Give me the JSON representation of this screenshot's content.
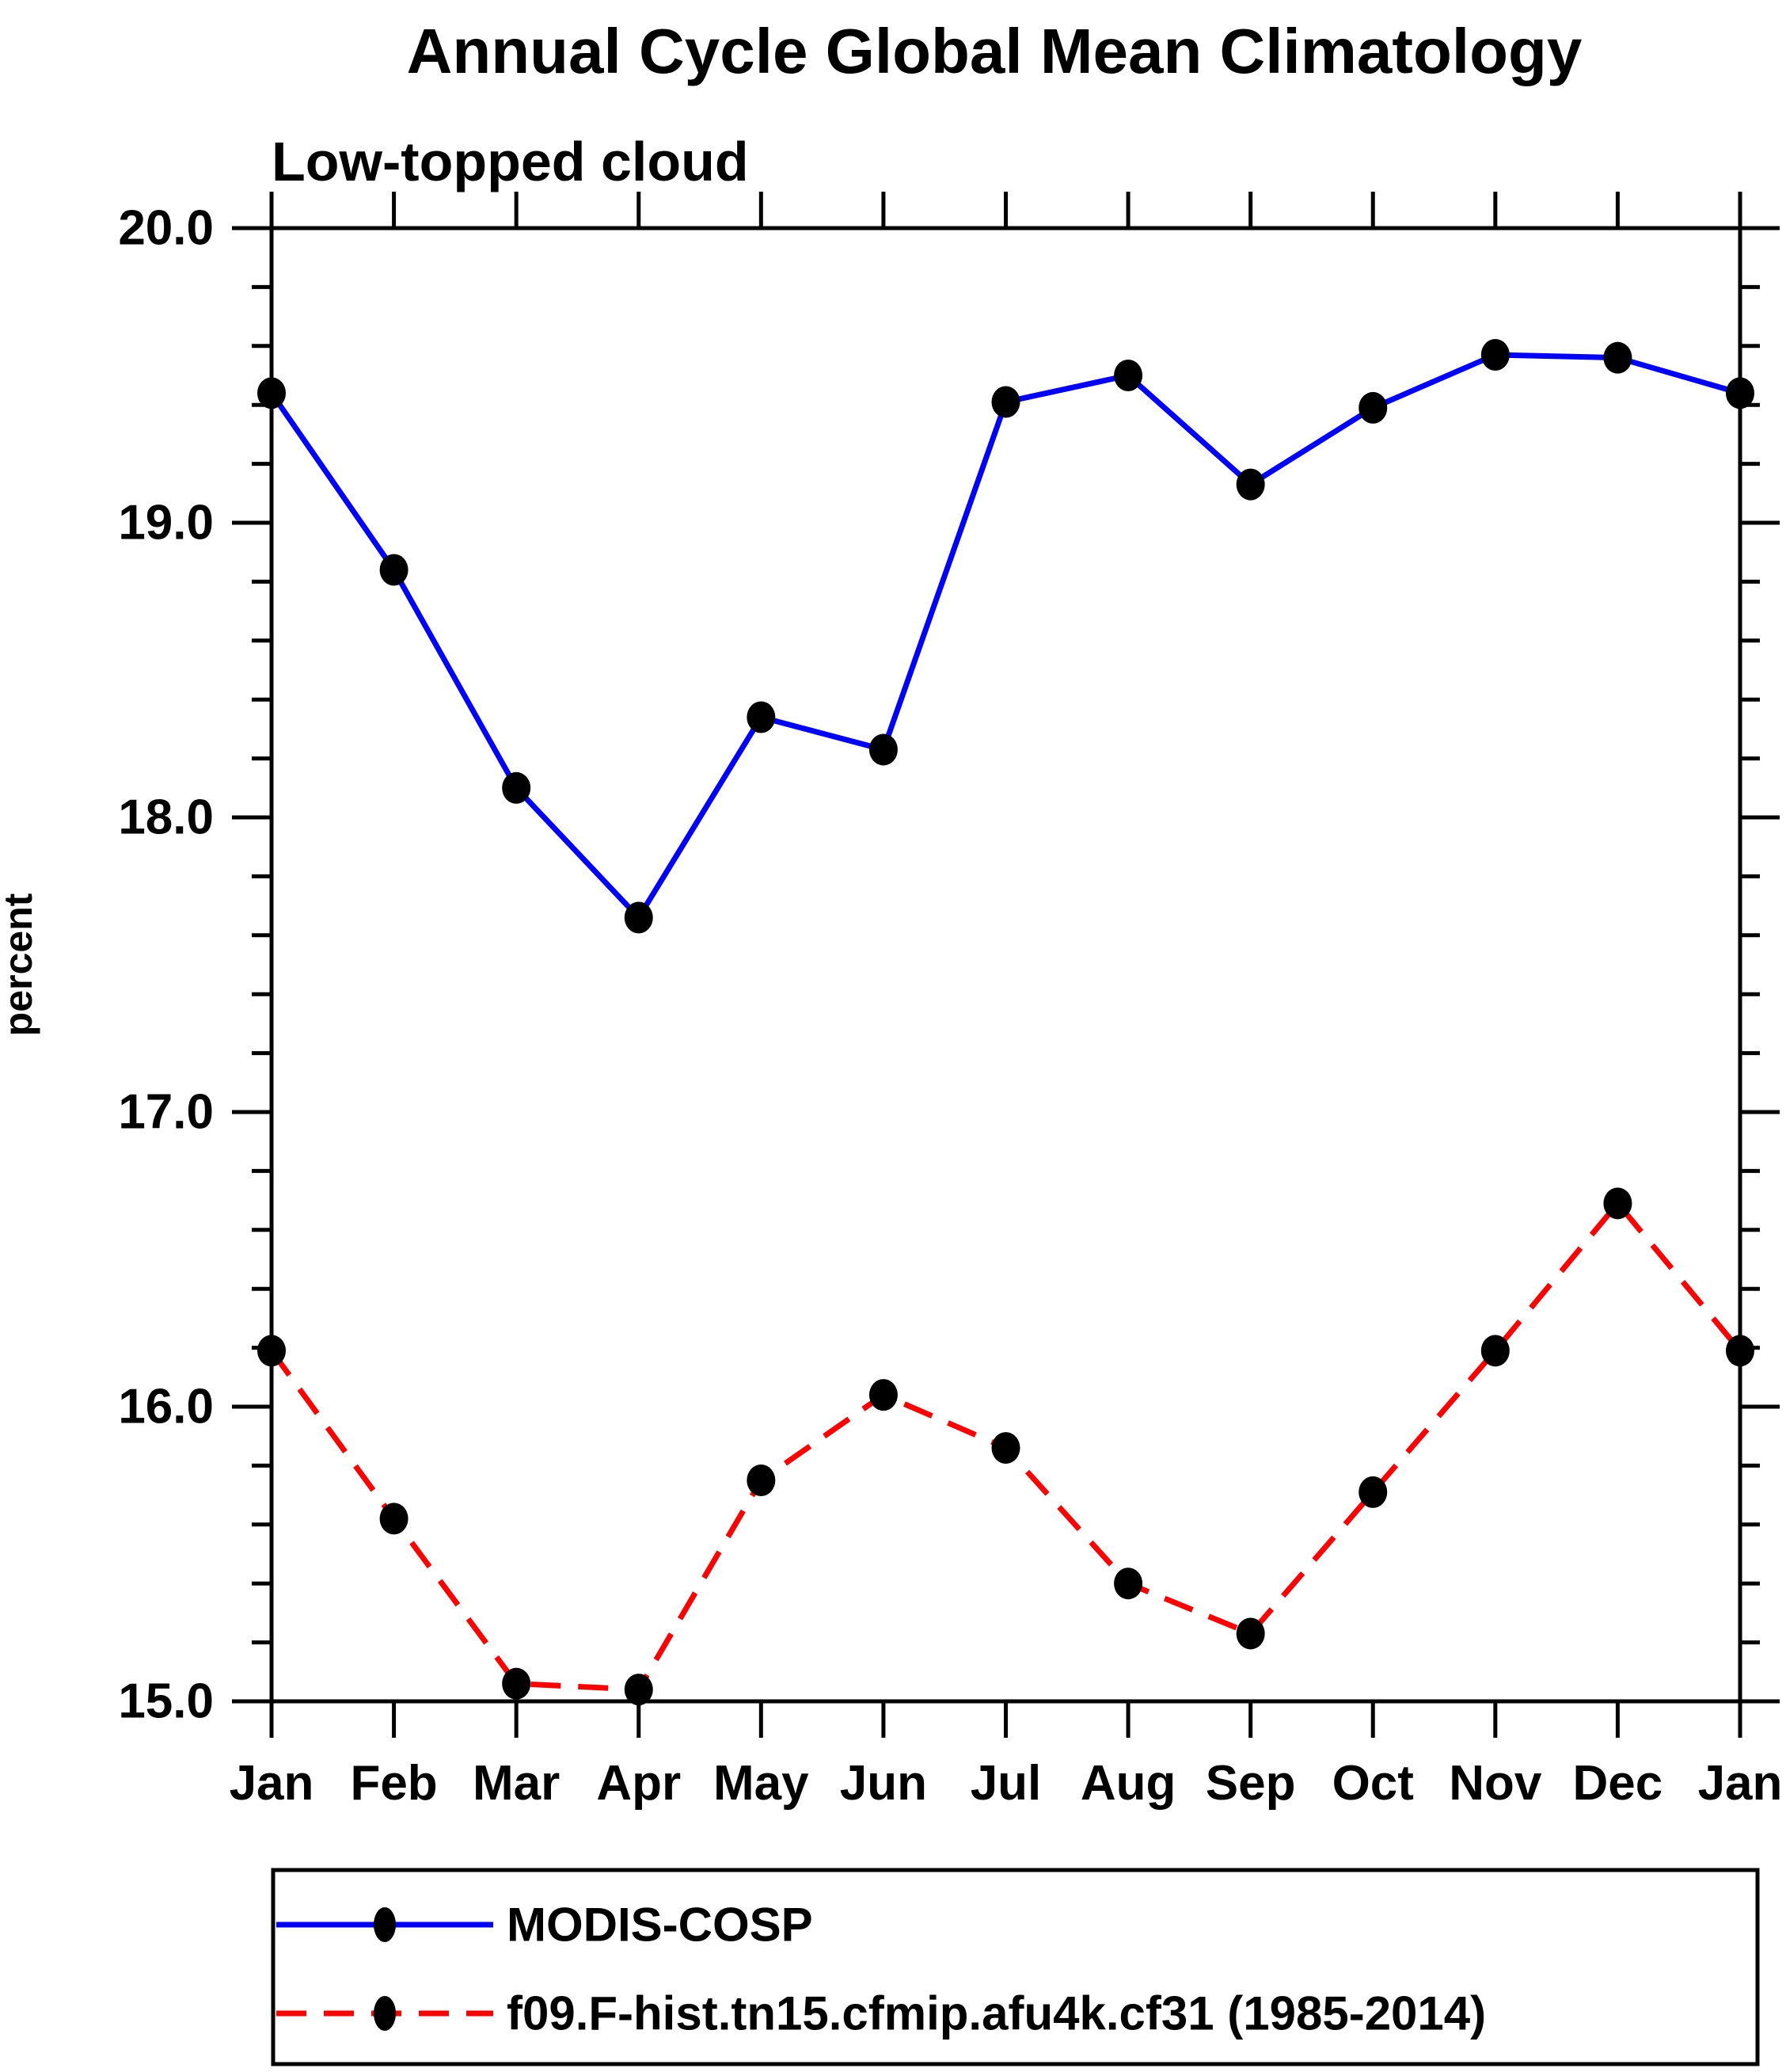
{
  "title": "Annual Cycle Global Mean Climatology",
  "subtitle": "Low-topped cloud",
  "colors": {
    "background": "#ffffff",
    "axis": "#000000",
    "obs_line": "#0000ff",
    "model_line": "#ff0000",
    "marker": "#000000",
    "text": "#000000"
  },
  "chart_data": {
    "type": "line",
    "title": "Annual Cycle Global Mean Climatology",
    "subtitle": "Low-topped cloud",
    "xlabel": "",
    "ylabel": "percent",
    "x_categories": [
      "Jan",
      "Feb",
      "Mar",
      "Apr",
      "May",
      "Jun",
      "Jul",
      "Aug",
      "Sep",
      "Oct",
      "Nov",
      "Dec",
      "Jan"
    ],
    "ylim": [
      15.0,
      20.0
    ],
    "ytick_major_labels": [
      "15.0",
      "16.0",
      "17.0",
      "18.0",
      "19.0",
      "20.0"
    ],
    "ytick_major_values": [
      15.0,
      16.0,
      17.0,
      18.0,
      19.0,
      20.0
    ],
    "ytick_minor_step": 0.2,
    "grid": false,
    "legend_position": "bottom",
    "series": [
      {
        "name": "MODIS-COSP",
        "color": "#0000ff",
        "line_style": "solid",
        "marker": "filled-circle",
        "marker_color": "#000000",
        "values": [
          19.44,
          18.84,
          18.1,
          17.66,
          18.34,
          18.23,
          19.41,
          19.5,
          19.13,
          19.39,
          19.57,
          19.56,
          19.44
        ]
      },
      {
        "name": "f09.F-hist.tn15.cfmip.afu4k.cf31 (1985-2014)",
        "color": "#ff0000",
        "line_style": "dashed",
        "marker": "filled-circle",
        "marker_color": "#000000",
        "values": [
          16.19,
          15.62,
          15.06,
          15.04,
          15.75,
          16.04,
          15.86,
          15.4,
          15.23,
          15.71,
          16.19,
          16.69,
          16.19
        ]
      }
    ]
  },
  "legend": {
    "entries": [
      {
        "label": "MODIS-COSP"
      },
      {
        "label": "f09.F-hist.tn15.cfmip.afu4k.cf31 (1985-2014)"
      }
    ]
  }
}
